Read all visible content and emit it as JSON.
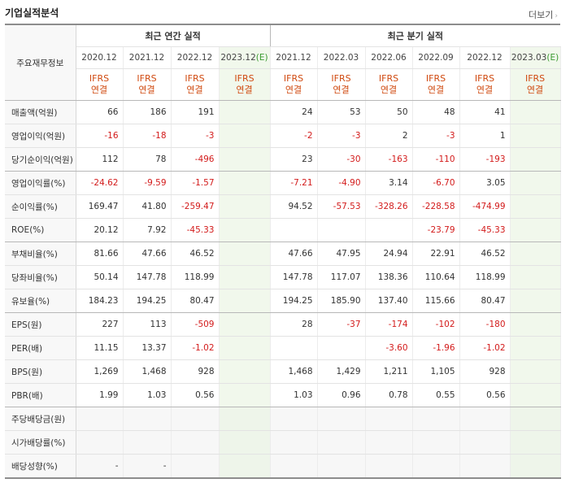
{
  "header": {
    "title": "기업실적분석",
    "more_label": "더보기",
    "more_arrow": "›"
  },
  "table": {
    "corner_label": "주요재무정보",
    "annual_group": "최근 연간 실적",
    "quarter_group": "최근 분기 실적",
    "columns": [
      {
        "period": "2020.12",
        "est": "",
        "std1": "IFRS",
        "std2": "연결"
      },
      {
        "period": "2021.12",
        "est": "",
        "std1": "IFRS",
        "std2": "연결"
      },
      {
        "period": "2022.12",
        "est": "",
        "std1": "IFRS",
        "std2": "연결"
      },
      {
        "period": "2023.12",
        "est": "(E)",
        "std1": "IFRS",
        "std2": "연결"
      },
      {
        "period": "2021.12",
        "est": "",
        "std1": "IFRS",
        "std2": "연결"
      },
      {
        "period": "2022.03",
        "est": "",
        "std1": "IFRS",
        "std2": "연결"
      },
      {
        "period": "2022.06",
        "est": "",
        "std1": "IFRS",
        "std2": "연결"
      },
      {
        "period": "2022.09",
        "est": "",
        "std1": "IFRS",
        "std2": "연결"
      },
      {
        "period": "2022.12",
        "est": "",
        "std1": "IFRS",
        "std2": "연결"
      },
      {
        "period": "2023.03",
        "est": "(E)",
        "std1": "IFRS",
        "std2": "연결"
      }
    ],
    "rows": [
      {
        "label": "매출액(억원)",
        "values": [
          "66",
          "186",
          "191",
          "",
          "24",
          "53",
          "50",
          "48",
          "41",
          ""
        ]
      },
      {
        "label": "영업이익(억원)",
        "values": [
          "-16",
          "-18",
          "-3",
          "",
          "-2",
          "-3",
          "2",
          "-3",
          "1",
          ""
        ]
      },
      {
        "label": "당기순이익(억원)",
        "values": [
          "112",
          "78",
          "-496",
          "",
          "23",
          "-30",
          "-163",
          "-110",
          "-193",
          ""
        ]
      },
      {
        "label": "영업이익률(%)",
        "values": [
          "-24.62",
          "-9.59",
          "-1.57",
          "",
          "-7.21",
          "-4.90",
          "3.14",
          "-6.70",
          "3.05",
          ""
        ]
      },
      {
        "label": "순이익률(%)",
        "values": [
          "169.47",
          "41.80",
          "-259.47",
          "",
          "94.52",
          "-57.53",
          "-328.26",
          "-228.58",
          "-474.99",
          ""
        ]
      },
      {
        "label": "ROE(%)",
        "values": [
          "20.12",
          "7.92",
          "-45.33",
          "",
          "",
          "",
          "",
          "-23.79",
          "-45.33",
          ""
        ]
      },
      {
        "label": "부채비율(%)",
        "values": [
          "81.66",
          "47.66",
          "46.52",
          "",
          "47.66",
          "47.95",
          "24.94",
          "22.91",
          "46.52",
          ""
        ]
      },
      {
        "label": "당좌비율(%)",
        "values": [
          "50.14",
          "147.78",
          "118.99",
          "",
          "147.78",
          "117.07",
          "138.36",
          "110.64",
          "118.99",
          ""
        ]
      },
      {
        "label": "유보율(%)",
        "values": [
          "184.23",
          "194.25",
          "80.47",
          "",
          "194.25",
          "185.90",
          "137.40",
          "115.66",
          "80.47",
          ""
        ]
      },
      {
        "label": "EPS(원)",
        "values": [
          "227",
          "113",
          "-509",
          "",
          "28",
          "-37",
          "-174",
          "-102",
          "-180",
          ""
        ]
      },
      {
        "label": "PER(배)",
        "values": [
          "11.15",
          "13.37",
          "-1.02",
          "",
          "",
          "",
          "-3.60",
          "-1.96",
          "-1.02",
          ""
        ]
      },
      {
        "label": "BPS(원)",
        "values": [
          "1,269",
          "1,468",
          "928",
          "",
          "1,468",
          "1,429",
          "1,211",
          "1,105",
          "928",
          ""
        ]
      },
      {
        "label": "PBR(배)",
        "values": [
          "1.99",
          "1.03",
          "0.56",
          "",
          "1.03",
          "0.96",
          "0.78",
          "0.55",
          "0.56",
          ""
        ]
      },
      {
        "label": "주당배당금(원)",
        "values": [
          "",
          "",
          "",
          "",
          "",
          "",
          "",
          "",
          "",
          ""
        ]
      },
      {
        "label": "시가배당률(%)",
        "values": [
          "",
          "",
          "",
          "",
          "",
          "",
          "",
          "",
          "",
          ""
        ]
      },
      {
        "label": "배당성향(%)",
        "values": [
          "-",
          "-",
          "",
          "",
          "",
          "",
          "",
          "",
          "",
          ""
        ]
      }
    ]
  },
  "colors": {
    "negative": "#d31b1b",
    "standard": "#d04a10",
    "estimate_bg": "#f1f8ec",
    "estimate_tag": "#3a9a30"
  }
}
